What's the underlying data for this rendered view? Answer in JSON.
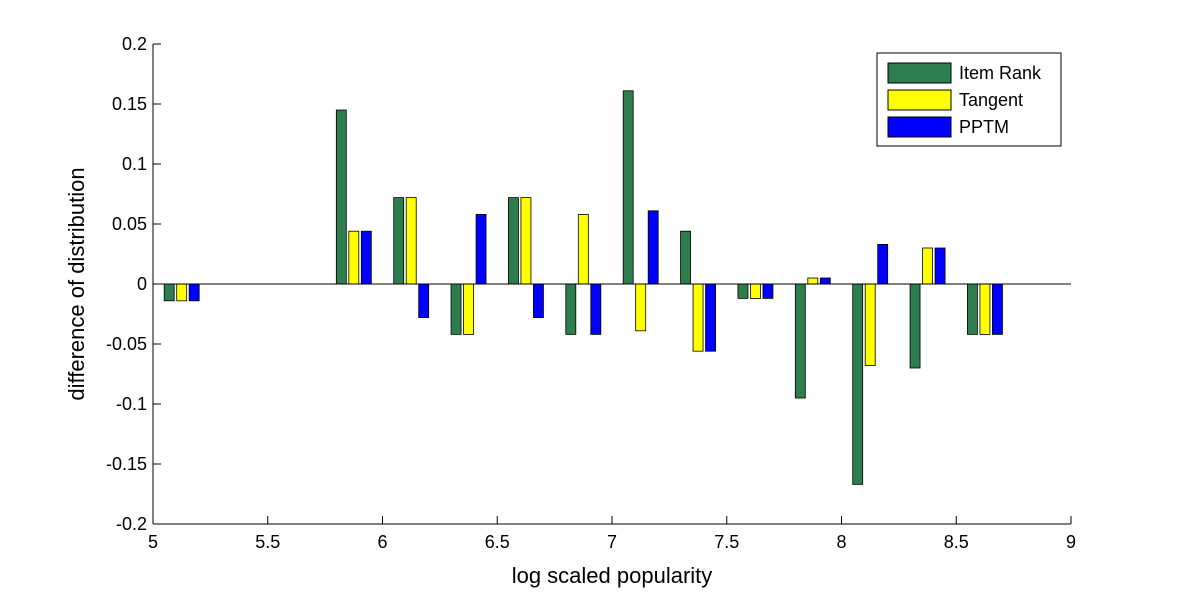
{
  "chart_data": {
    "type": "bar",
    "title": "",
    "xlabel": "log scaled popularity",
    "ylabel": "difference of distribution",
    "xlim": [
      5,
      9
    ],
    "ylim": [
      -0.2,
      0.2
    ],
    "x_ticks": [
      "5",
      "5.5",
      "6",
      "6.5",
      "7",
      "7.5",
      "8",
      "8.5",
      "9"
    ],
    "x_tick_values": [
      5,
      5.5,
      6,
      6.5,
      7,
      7.5,
      8,
      8.5,
      9
    ],
    "y_ticks": [
      "-0.2",
      "-0.15",
      "-0.1",
      "-0.05",
      "0",
      "0.05",
      "0.1",
      "0.15",
      "0.2"
    ],
    "y_tick_values": [
      -0.2,
      -0.15,
      -0.1,
      -0.05,
      0,
      0.05,
      0.1,
      0.15,
      0.2
    ],
    "grid": false,
    "legend_position": "top-right",
    "x": [
      5.125,
      5.375,
      5.625,
      5.875,
      6.125,
      6.375,
      6.625,
      6.875,
      7.125,
      7.375,
      7.625,
      7.875,
      8.125,
      8.375,
      8.625
    ],
    "series": [
      {
        "name": "Item Rank",
        "color": "#2e7d4f",
        "values": [
          -0.014,
          0,
          0,
          0.145,
          0.072,
          -0.042,
          0.072,
          -0.042,
          0.161,
          0.044,
          -0.012,
          -0.095,
          -0.167,
          -0.07,
          -0.042
        ]
      },
      {
        "name": "Tangent",
        "color": "#ffff00",
        "values": [
          -0.014,
          0,
          0,
          0.044,
          0.072,
          -0.042,
          0.072,
          0.058,
          -0.039,
          -0.056,
          -0.012,
          0.005,
          -0.068,
          0.03,
          -0.042
        ]
      },
      {
        "name": "PPTM",
        "color": "#0000ff",
        "values": [
          -0.014,
          0,
          0,
          0.044,
          -0.028,
          0.058,
          -0.028,
          -0.042,
          0.061,
          -0.056,
          -0.012,
          0.005,
          0.033,
          0.03,
          -0.042
        ]
      }
    ]
  }
}
